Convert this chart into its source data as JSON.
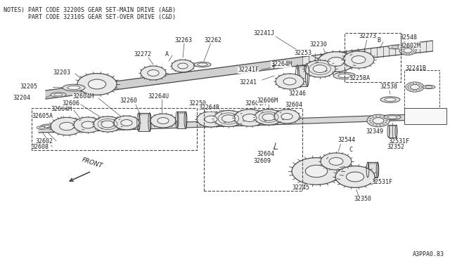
{
  "bg_color": "#ffffff",
  "line_color": "#4a4a4a",
  "text_color": "#222222",
  "title_line1": "NOTES) PART CODE 32200S GEAR SET-MAIN DRIVE (A&B)",
  "title_line2": "       PART CODE 32310S GEAR SET-OVER DRIVE (C&D)",
  "diagram_id": "A3PPA0.83",
  "front_label": "FRONT",
  "figsize": [
    6.4,
    3.72
  ],
  "dpi": 100
}
